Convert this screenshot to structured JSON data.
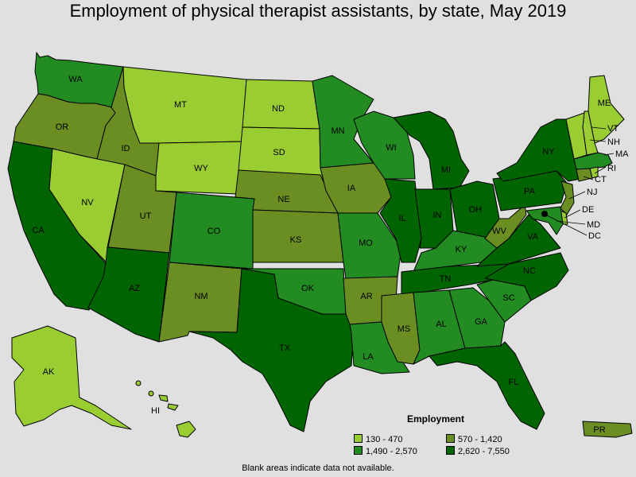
{
  "title": "Employment of physical therapist assistants, by state, May 2019",
  "legend": {
    "title": "Employment",
    "items": [
      {
        "label": "130 - 470",
        "color": "#9acd32"
      },
      {
        "label": "570 - 1,420",
        "color": "#6b8e23"
      },
      {
        "label": "1,490 - 2,570",
        "color": "#228b22"
      },
      {
        "label": "2,620 - 7,550",
        "color": "#006400"
      }
    ]
  },
  "footnote": "Blank areas indicate data not available.",
  "states": [
    {
      "code": "WA",
      "tier": 2
    },
    {
      "code": "OR",
      "tier": 1
    },
    {
      "code": "CA",
      "tier": 3
    },
    {
      "code": "ID",
      "tier": 1
    },
    {
      "code": "NV",
      "tier": 0
    },
    {
      "code": "MT",
      "tier": 0
    },
    {
      "code": "WY",
      "tier": 0
    },
    {
      "code": "UT",
      "tier": 1
    },
    {
      "code": "AZ",
      "tier": 3
    },
    {
      "code": "CO",
      "tier": 2
    },
    {
      "code": "NM",
      "tier": 1
    },
    {
      "code": "ND",
      "tier": 0
    },
    {
      "code": "SD",
      "tier": 0
    },
    {
      "code": "NE",
      "tier": 1
    },
    {
      "code": "KS",
      "tier": 1
    },
    {
      "code": "OK",
      "tier": 2
    },
    {
      "code": "TX",
      "tier": 3
    },
    {
      "code": "MN",
      "tier": 2
    },
    {
      "code": "IA",
      "tier": 1
    },
    {
      "code": "MO",
      "tier": 2
    },
    {
      "code": "AR",
      "tier": 1
    },
    {
      "code": "LA",
      "tier": 2
    },
    {
      "code": "WI",
      "tier": 2
    },
    {
      "code": "IL",
      "tier": 3
    },
    {
      "code": "MI",
      "tier": 3
    },
    {
      "code": "IN",
      "tier": 3
    },
    {
      "code": "OH",
      "tier": 3
    },
    {
      "code": "KY",
      "tier": 2
    },
    {
      "code": "TN",
      "tier": 3
    },
    {
      "code": "MS",
      "tier": 1
    },
    {
      "code": "AL",
      "tier": 2
    },
    {
      "code": "GA",
      "tier": 2
    },
    {
      "code": "FL",
      "tier": 3
    },
    {
      "code": "SC",
      "tier": 2
    },
    {
      "code": "NC",
      "tier": 3
    },
    {
      "code": "VA",
      "tier": 3
    },
    {
      "code": "WV",
      "tier": 1
    },
    {
      "code": "PA",
      "tier": 3
    },
    {
      "code": "NY",
      "tier": 3
    },
    {
      "code": "ME",
      "tier": 0
    },
    {
      "code": "NH",
      "tier": 0
    },
    {
      "code": "VT",
      "tier": 0
    },
    {
      "code": "MA",
      "tier": 2
    },
    {
      "code": "RI",
      "tier": 0
    },
    {
      "code": "CT",
      "tier": 1
    },
    {
      "code": "NJ",
      "tier": 1
    },
    {
      "code": "DE",
      "tier": 0
    },
    {
      "code": "MD",
      "tier": 2
    },
    {
      "code": "DC",
      "tier": 3
    },
    {
      "code": "AK",
      "tier": 0
    },
    {
      "code": "HI",
      "tier": 0
    },
    {
      "code": "PR",
      "tier": 1
    }
  ]
}
